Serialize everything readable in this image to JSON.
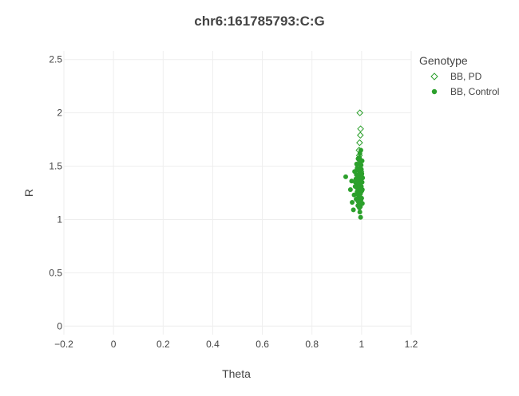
{
  "chart_data": {
    "type": "scatter",
    "title": "chr6:161785793:C:G",
    "xlabel": "Theta",
    "ylabel": "R",
    "xlim": [
      -0.2,
      1.2
    ],
    "ylim": [
      -0.08,
      2.58
    ],
    "xticks": [
      -0.2,
      0,
      0.2,
      0.4,
      0.6,
      0.8,
      1,
      1.2
    ],
    "xtick_labels": [
      "−0.2",
      "0",
      "0.2",
      "0.4",
      "0.6",
      "0.8",
      "1",
      "1.2"
    ],
    "yticks": [
      0,
      0.5,
      1,
      1.5,
      2,
      2.5
    ],
    "ytick_labels": [
      "0",
      "0.5",
      "1",
      "1.5",
      "2",
      "2.5"
    ],
    "grid": true,
    "legend": {
      "title": "Genotype",
      "position": "top-right"
    },
    "series": [
      {
        "name": "BB, PD",
        "marker": "diamond-open",
        "color": "#2ca02c",
        "points": [
          [
            0.993,
            2.0
          ],
          [
            0.996,
            1.85
          ],
          [
            0.995,
            1.79
          ],
          [
            0.992,
            1.72
          ],
          [
            0.99,
            1.65
          ],
          [
            0.991,
            1.6
          ],
          [
            0.994,
            1.55
          ],
          [
            0.988,
            1.5
          ],
          [
            0.997,
            1.45
          ],
          [
            0.99,
            1.42
          ],
          [
            0.993,
            1.38
          ],
          [
            0.996,
            1.35
          ],
          [
            0.989,
            1.3
          ],
          [
            0.994,
            1.28
          ],
          [
            0.991,
            1.24
          ],
          [
            0.997,
            1.2
          ],
          [
            0.992,
            1.16
          ],
          [
            0.99,
            1.57
          ],
          [
            0.995,
            1.47
          ],
          [
            0.988,
            1.33
          ]
        ]
      },
      {
        "name": "BB, Control",
        "marker": "circle",
        "color": "#2ca02c",
        "points": [
          [
            0.936,
            1.4
          ],
          [
            0.955,
            1.28
          ],
          [
            0.96,
            1.36
          ],
          [
            0.962,
            1.16
          ],
          [
            0.967,
            1.09
          ],
          [
            0.97,
            1.23
          ],
          [
            0.974,
            1.31
          ],
          [
            0.972,
            1.45
          ],
          [
            0.978,
            1.19
          ],
          [
            0.98,
            1.52
          ],
          [
            0.977,
            1.38
          ],
          [
            0.982,
            1.26
          ],
          [
            0.985,
            1.13
          ],
          [
            0.984,
            1.41
          ],
          [
            0.986,
            1.57
          ],
          [
            0.988,
            1.21
          ],
          [
            0.99,
            1.34
          ],
          [
            0.989,
            1.48
          ],
          [
            0.991,
            1.11
          ],
          [
            0.992,
            1.29
          ],
          [
            0.993,
            1.62
          ],
          [
            0.994,
            1.44
          ],
          [
            0.995,
            1.24
          ],
          [
            0.996,
            1.36
          ],
          [
            0.997,
            1.18
          ],
          [
            0.998,
            1.51
          ],
          [
            0.999,
            1.31
          ],
          [
            1.0,
            1.42
          ],
          [
            1.001,
            1.27
          ],
          [
            1.002,
            1.55
          ],
          [
            1.003,
            1.15
          ],
          [
            1.004,
            1.39
          ],
          [
            0.983,
            1.33
          ],
          [
            0.987,
            1.46
          ],
          [
            0.99,
            1.22
          ],
          [
            0.993,
            1.39
          ],
          [
            0.996,
            1.3
          ],
          [
            0.999,
            1.47
          ],
          [
            1.002,
            1.35
          ],
          [
            0.981,
            1.24
          ],
          [
            0.986,
            1.17
          ],
          [
            0.992,
            1.52
          ],
          [
            0.995,
            1.12
          ],
          [
            0.998,
            1.26
          ],
          [
            1.0,
            1.2
          ],
          [
            0.979,
            1.42
          ],
          [
            0.984,
            1.29
          ],
          [
            0.988,
            1.37
          ],
          [
            0.991,
            1.58
          ],
          [
            0.994,
            1.33
          ],
          [
            0.997,
            1.41
          ],
          [
            1.003,
            1.28
          ],
          [
            0.975,
            1.35
          ],
          [
            0.982,
            1.48
          ],
          [
            0.989,
            1.14
          ],
          [
            0.996,
            1.54
          ],
          [
            1.001,
            1.43
          ],
          [
            0.993,
            1.07
          ],
          [
            0.997,
            1.65
          ],
          [
            0.996,
            1.02
          ]
        ]
      }
    ]
  }
}
